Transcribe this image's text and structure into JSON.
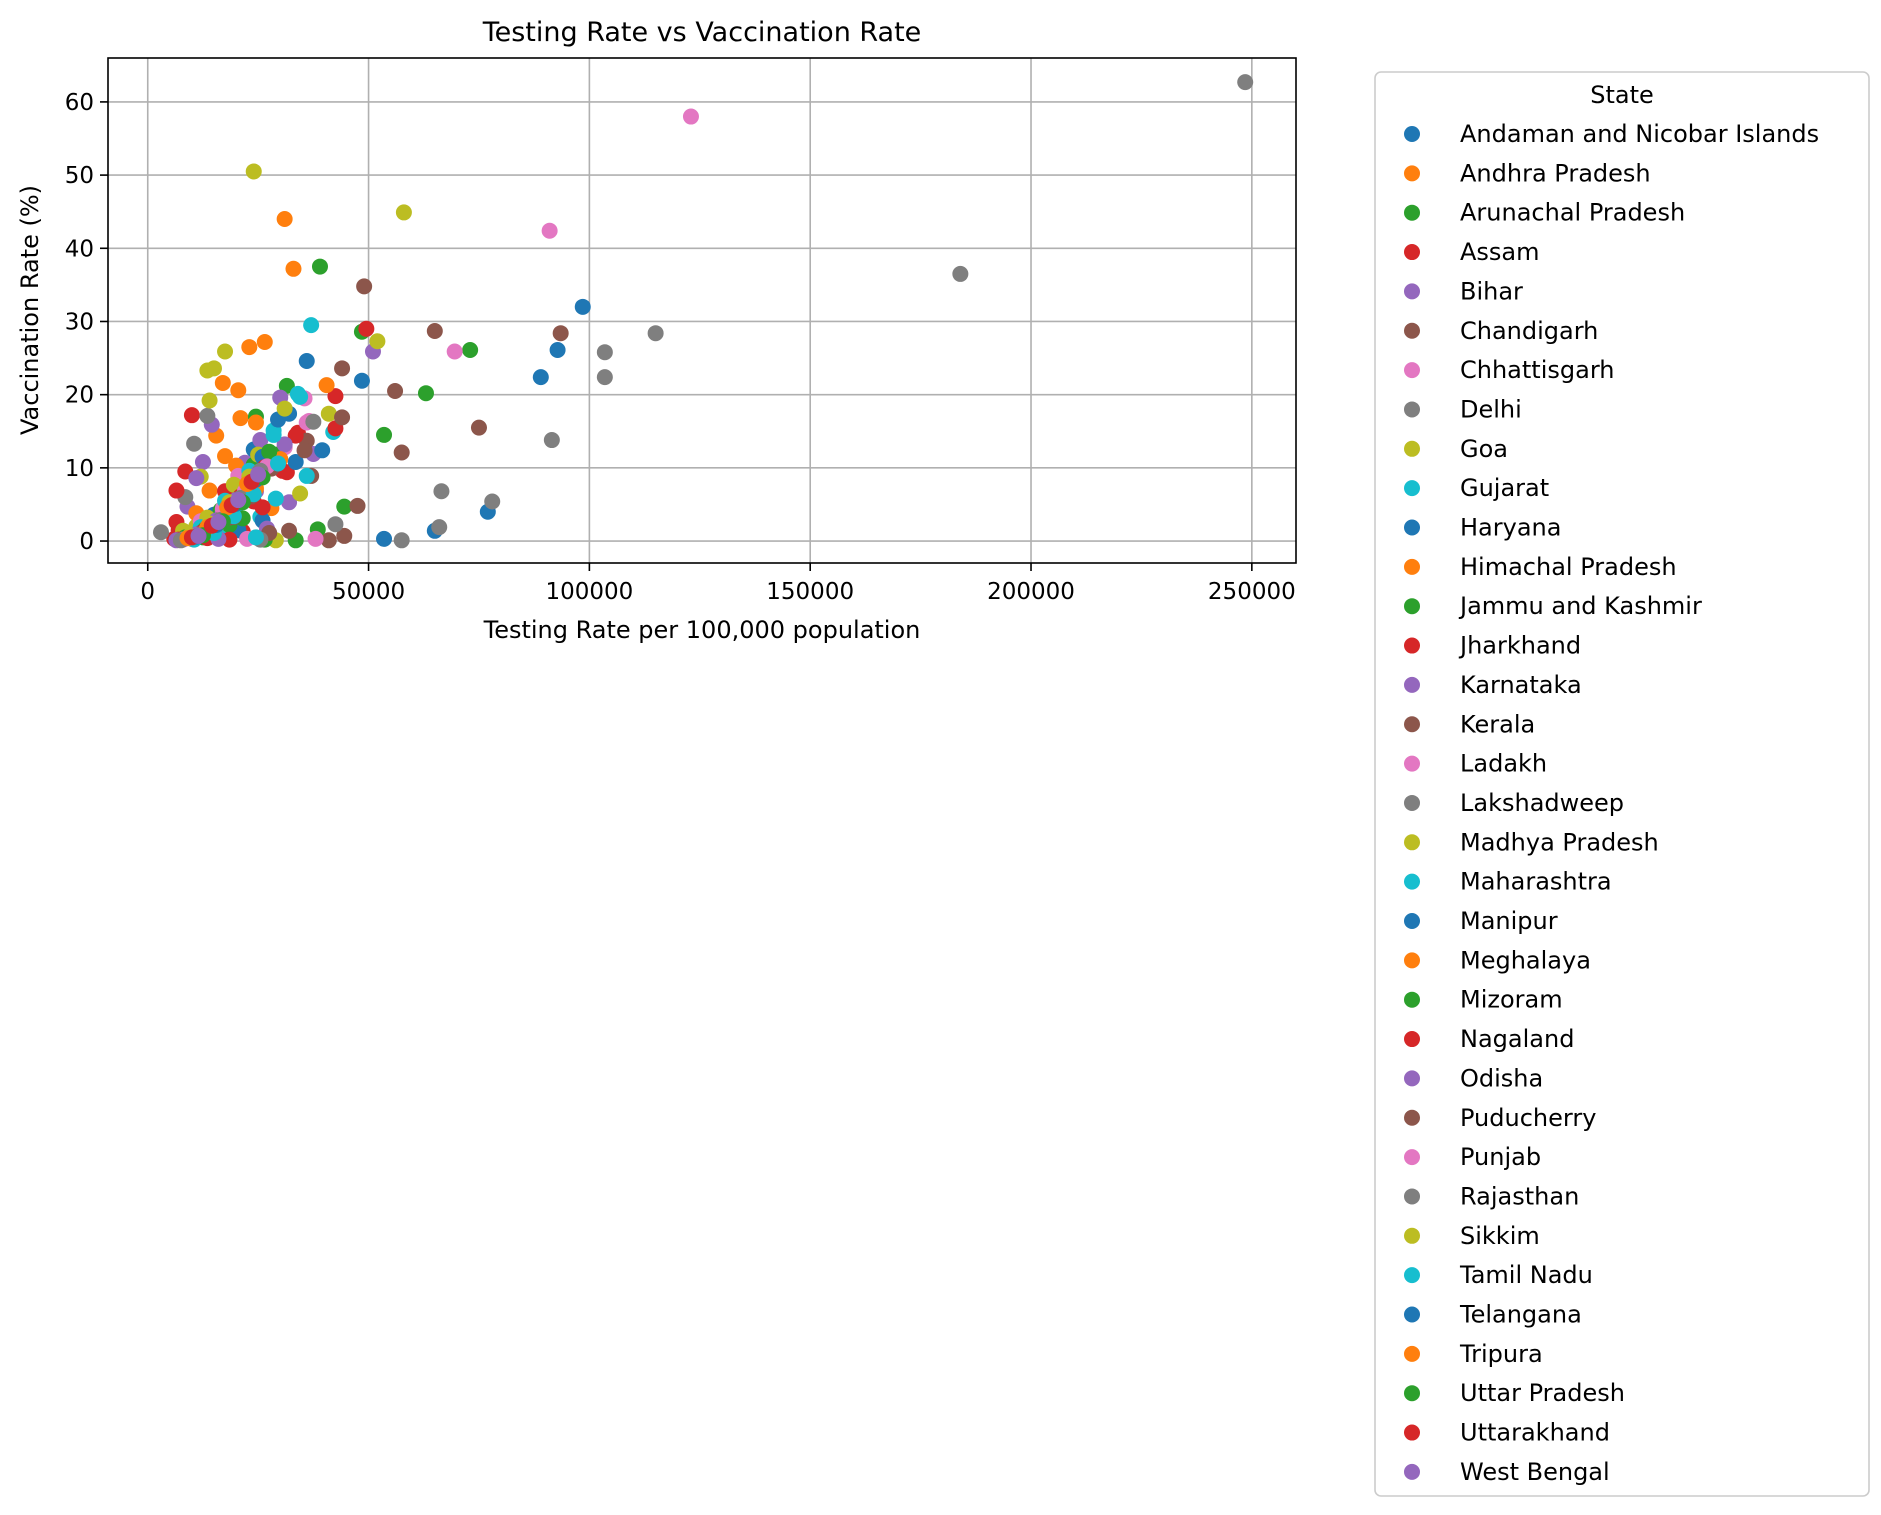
{
  "chart_data": {
    "type": "scatter",
    "title": "Testing Rate vs Vaccination Rate",
    "xlabel": "Testing Rate per 100,000 population",
    "ylabel": "Vaccination Rate (%)",
    "xlim": [
      -9000,
      260000
    ],
    "ylim": [
      -3,
      66
    ],
    "xticks": [
      0,
      50000,
      100000,
      150000,
      200000,
      250000
    ],
    "yticks": [
      0,
      10,
      20,
      30,
      40,
      50,
      60
    ],
    "grid": true,
    "legend": {
      "title": "State",
      "placement": "outside-right"
    },
    "palette": [
      "#1f77b4",
      "#ff7f0e",
      "#2ca02c",
      "#d62728",
      "#9467bd",
      "#8c564b",
      "#e377c2",
      "#7f7f7f",
      "#bcbd22",
      "#17becf"
    ],
    "series": [
      {
        "name": "Andaman and Nicobar Islands",
        "points": [
          [
            98500,
            32
          ],
          [
            92800,
            26.1
          ],
          [
            89000,
            22.4
          ],
          [
            48500,
            21.9
          ],
          [
            36000,
            24.6
          ],
          [
            77000,
            4
          ],
          [
            53500,
            0.3
          ],
          [
            65000,
            1.4
          ],
          [
            24000,
            12.5
          ]
        ]
      },
      {
        "name": "Andhra Pradesh",
        "points": [
          [
            31000,
            44
          ],
          [
            33000,
            37.2
          ],
          [
            26500,
            27.2
          ],
          [
            23000,
            26.5
          ],
          [
            17000,
            21.6
          ],
          [
            20500,
            20.6
          ],
          [
            21000,
            16.8
          ],
          [
            15500,
            14.4
          ],
          [
            17500,
            11.6
          ],
          [
            14000,
            6.9
          ],
          [
            28000,
            4.5
          ]
        ]
      },
      {
        "name": "Arunachal Pradesh",
        "points": [
          [
            39000,
            37.5
          ],
          [
            73000,
            26.1
          ],
          [
            48500,
            28.6
          ],
          [
            63000,
            20.2
          ],
          [
            31500,
            21.2
          ],
          [
            24500,
            17
          ],
          [
            53500,
            14.5
          ],
          [
            44500,
            4.7
          ],
          [
            38500,
            1.6
          ],
          [
            33500,
            0.1
          ],
          [
            21000,
            6.1
          ],
          [
            15000,
            1.8
          ]
        ]
      },
      {
        "name": "Assam",
        "points": [
          [
            49500,
            29
          ],
          [
            42500,
            19.8
          ],
          [
            34000,
            14.8
          ],
          [
            31500,
            9.4
          ],
          [
            22500,
            9
          ],
          [
            17500,
            6.8
          ],
          [
            24000,
            5.4
          ],
          [
            21500,
            1.3
          ],
          [
            10000,
            17.2
          ],
          [
            8500,
            9.5
          ],
          [
            6500,
            2.6
          ],
          [
            6000,
            0.3
          ]
        ]
      },
      {
        "name": "Bihar",
        "points": [
          [
            51000,
            25.9
          ],
          [
            30000,
            19.6
          ],
          [
            22000,
            10.7
          ],
          [
            14500,
            15.9
          ],
          [
            12500,
            10.8
          ],
          [
            37500,
            11.9
          ],
          [
            32000,
            5.3
          ],
          [
            24500,
            6.8
          ],
          [
            19000,
            1.6
          ],
          [
            9000,
            4.7
          ],
          [
            7500,
            0.5
          ]
        ]
      },
      {
        "name": "Chandigarh",
        "points": [
          [
            49000,
            34.8
          ],
          [
            65000,
            28.7
          ],
          [
            93500,
            28.4
          ],
          [
            44000,
            23.6
          ],
          [
            56000,
            20.5
          ],
          [
            75000,
            15.5
          ],
          [
            57500,
            12.1
          ],
          [
            37000,
            8.9
          ],
          [
            47500,
            4.8
          ],
          [
            44500,
            0.7
          ],
          [
            41000,
            0.1
          ],
          [
            32000,
            1.4
          ],
          [
            36000,
            13.7
          ]
        ]
      },
      {
        "name": "Chhattisgarh",
        "points": [
          [
            123000,
            58
          ],
          [
            91000,
            42.4
          ],
          [
            69500,
            25.9
          ],
          [
            35500,
            19.5
          ],
          [
            36500,
            16.4
          ],
          [
            31000,
            12.8
          ],
          [
            26000,
            10.5
          ],
          [
            20000,
            2.6
          ],
          [
            38000,
            0.3
          ]
        ]
      },
      {
        "name": "Delhi",
        "points": [
          [
            248500,
            62.7
          ],
          [
            184000,
            36.5
          ],
          [
            115000,
            28.4
          ],
          [
            103500,
            25.8
          ],
          [
            103500,
            22.4
          ],
          [
            91500,
            13.8
          ],
          [
            78000,
            5.4
          ],
          [
            66500,
            6.8
          ],
          [
            66000,
            1.9
          ],
          [
            57500,
            0.1
          ],
          [
            42500,
            2.3
          ],
          [
            13500,
            17.1
          ],
          [
            10500,
            13.3
          ],
          [
            8500,
            6
          ],
          [
            3000,
            1.2
          ]
        ]
      },
      {
        "name": "Goa",
        "points": [
          [
            24000,
            50.5
          ],
          [
            58000,
            44.9
          ],
          [
            52000,
            27.3
          ],
          [
            17500,
            25.9
          ],
          [
            13500,
            23.3
          ],
          [
            14000,
            19.2
          ],
          [
            41000,
            17.4
          ],
          [
            34500,
            6.5
          ],
          [
            12000,
            8.8
          ],
          [
            29000,
            0.1
          ],
          [
            11000,
            2
          ]
        ]
      },
      {
        "name": "Gujarat",
        "points": [
          [
            37000,
            29.5
          ],
          [
            34000,
            20.1
          ],
          [
            28500,
            15.1
          ],
          [
            42000,
            14.9
          ],
          [
            36000,
            8.9
          ],
          [
            29000,
            5.8
          ],
          [
            25500,
            3.3
          ],
          [
            20000,
            4.8
          ],
          [
            17000,
            1.6
          ]
        ]
      },
      {
        "name": "Haryana",
        "points": [
          [
            32000,
            17.4
          ],
          [
            29500,
            16.6
          ],
          [
            39500,
            12.4
          ],
          [
            33500,
            10.8
          ],
          [
            27000,
            11.2
          ],
          [
            26000,
            2.8
          ],
          [
            20500,
            1.5
          ],
          [
            15000,
            3.6
          ]
        ]
      },
      {
        "name": "Himachal Pradesh",
        "points": [
          [
            40500,
            21.3
          ],
          [
            24500,
            16.2
          ],
          [
            20000,
            10.3
          ],
          [
            11000,
            3.8
          ],
          [
            9000,
            0.8
          ],
          [
            25000,
            0.4
          ]
        ]
      },
      {
        "name": "Jammu and Kashmir",
        "points": [
          [
            29000,
            11.8
          ],
          [
            24000,
            10.4
          ],
          [
            16500,
            4.2
          ],
          [
            21500,
            3.1
          ],
          [
            12500,
            0.5
          ],
          [
            18500,
            2.2
          ],
          [
            26500,
            0.2
          ]
        ]
      },
      {
        "name": "Jharkhand",
        "points": [
          [
            42500,
            15.4
          ],
          [
            33500,
            14.4
          ],
          [
            30500,
            9.6
          ],
          [
            22500,
            8.8
          ],
          [
            18000,
            6.7
          ],
          [
            26000,
            4.6
          ],
          [
            13500,
            0.4
          ],
          [
            6500,
            6.9
          ],
          [
            7000,
            1.5
          ],
          [
            18500,
            0.2
          ]
        ]
      },
      {
        "name": "Karnataka",
        "points": [
          [
            31000,
            13.2
          ],
          [
            25500,
            13.8
          ],
          [
            22500,
            8.3
          ],
          [
            17000,
            4.1
          ],
          [
            11000,
            8.6
          ],
          [
            16000,
            0.3
          ],
          [
            27000,
            1.7
          ]
        ]
      },
      {
        "name": "Kerala",
        "points": [
          [
            44000,
            16.9
          ],
          [
            35500,
            12.4
          ],
          [
            24000,
            7.1
          ],
          [
            18500,
            3.2
          ],
          [
            13000,
            2.1
          ],
          [
            27500,
            1.1
          ],
          [
            9000,
            0.6
          ]
        ]
      },
      {
        "name": "Ladakh",
        "points": [
          [
            36000,
            16.2
          ],
          [
            27500,
            11.3
          ],
          [
            20500,
            8.9
          ],
          [
            17000,
            4.4
          ],
          [
            12000,
            2.7
          ],
          [
            22500,
            0.3
          ]
        ]
      },
      {
        "name": "Lakshadweep",
        "points": [
          [
            37500,
            16.3
          ],
          [
            29000,
            10.7
          ],
          [
            21500,
            6.6
          ],
          [
            16000,
            2.4
          ],
          [
            11000,
            0.8
          ],
          [
            25500,
            0.2
          ]
        ]
      },
      {
        "name": "Madhya Pradesh",
        "points": [
          [
            15000,
            23.6
          ],
          [
            31000,
            18.1
          ],
          [
            25000,
            11.8
          ],
          [
            19500,
            7.7
          ],
          [
            13500,
            3.2
          ],
          [
            8000,
            1.4
          ]
        ]
      },
      {
        "name": "Maharashtra",
        "points": [
          [
            34500,
            19.7
          ],
          [
            28500,
            14.5
          ],
          [
            23000,
            9.6
          ],
          [
            17500,
            5.5
          ],
          [
            12000,
            1.9
          ],
          [
            24500,
            0.5
          ]
        ]
      },
      {
        "name": "Manipur",
        "points": [
          [
            26000,
            11.5
          ],
          [
            22500,
            6.3
          ],
          [
            18500,
            3.7
          ],
          [
            14500,
            1.2
          ],
          [
            9500,
            0.4
          ]
        ]
      },
      {
        "name": "Meghalaya",
        "points": [
          [
            30000,
            11.2
          ],
          [
            24500,
            7.2
          ],
          [
            19000,
            3.9
          ],
          [
            14000,
            1.4
          ],
          [
            10000,
            0.3
          ]
        ]
      },
      {
        "name": "Mizoram",
        "points": [
          [
            27500,
            12.2
          ],
          [
            23000,
            7.9
          ],
          [
            18000,
            4.1
          ],
          [
            13000,
            1.6
          ],
          [
            8500,
            0.5
          ]
        ]
      },
      {
        "name": "Nagaland",
        "points": [
          [
            26500,
            10.1
          ],
          [
            21000,
            6.1
          ],
          [
            16500,
            3
          ],
          [
            12000,
            1.1
          ],
          [
            7000,
            0.2
          ]
        ]
      },
      {
        "name": "Odisha",
        "points": [
          [
            25000,
            9.3
          ],
          [
            20000,
            5.6
          ],
          [
            15500,
            2.8
          ],
          [
            11000,
            0.9
          ],
          [
            6500,
            0.1
          ]
        ]
      },
      {
        "name": "Puducherry",
        "points": [
          [
            28000,
            9.9
          ],
          [
            23500,
            6.1
          ],
          [
            19500,
            3.3
          ],
          [
            15000,
            1.3
          ],
          [
            10500,
            0.3
          ]
        ]
      },
      {
        "name": "Punjab",
        "points": [
          [
            27000,
            10.2
          ],
          [
            22000,
            6.8
          ],
          [
            17500,
            3.7
          ],
          [
            13000,
            1.3
          ],
          [
            8000,
            0.2
          ]
        ]
      },
      {
        "name": "Rajasthan",
        "points": [
          [
            25500,
            9.6
          ],
          [
            21000,
            5.9
          ],
          [
            16500,
            2.9
          ],
          [
            12000,
            0.9
          ],
          [
            7500,
            0.1
          ]
        ]
      },
      {
        "name": "Sikkim",
        "points": [
          [
            23000,
            8.8
          ],
          [
            18500,
            5.3
          ],
          [
            14000,
            2.4
          ],
          [
            9500,
            0.7
          ]
        ]
      },
      {
        "name": "Tamil Nadu",
        "points": [
          [
            29500,
            10.6
          ],
          [
            24000,
            6.4
          ],
          [
            19500,
            3.4
          ],
          [
            15000,
            1.1
          ],
          [
            10500,
            0.2
          ]
        ]
      },
      {
        "name": "Telangana",
        "points": [
          [
            24500,
            8.4
          ],
          [
            20000,
            5.1
          ],
          [
            15500,
            2.2
          ],
          [
            11000,
            0.6
          ]
        ]
      },
      {
        "name": "Tripura",
        "points": [
          [
            22500,
            7.8
          ],
          [
            18000,
            4.6
          ],
          [
            13500,
            1.9
          ],
          [
            9000,
            0.4
          ]
        ]
      },
      {
        "name": "Uttar Pradesh",
        "points": [
          [
            26000,
            8.7
          ],
          [
            21500,
            5.3
          ],
          [
            17000,
            2.7
          ],
          [
            12500,
            0.8
          ]
        ]
      },
      {
        "name": "Uttarakhand",
        "points": [
          [
            23500,
            8.1
          ],
          [
            19000,
            4.9
          ],
          [
            14500,
            2.1
          ],
          [
            10000,
            0.5
          ]
        ]
      },
      {
        "name": "West Bengal",
        "points": [
          [
            25000,
            9.1
          ],
          [
            20500,
            5.6
          ],
          [
            16000,
            2.6
          ],
          [
            11500,
            0.7
          ]
        ]
      }
    ]
  }
}
